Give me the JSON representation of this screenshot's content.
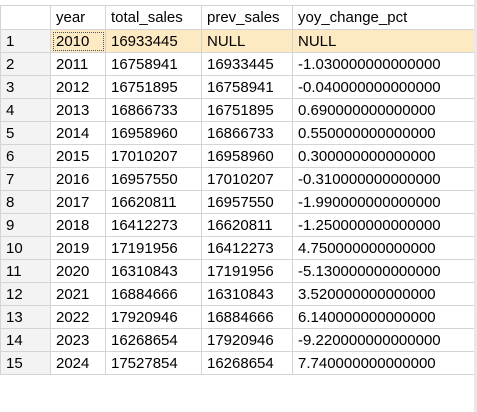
{
  "columns": [
    "year",
    "total_sales",
    "prev_sales",
    "yoy_change_pct"
  ],
  "rows": [
    [
      "1",
      "2010",
      "16933445",
      "NULL",
      "NULL"
    ],
    [
      "2",
      "2011",
      "16758941",
      "16933445",
      "-1.030000000000000"
    ],
    [
      "3",
      "2012",
      "16751895",
      "16758941",
      "-0.040000000000000"
    ],
    [
      "4",
      "2013",
      "16866733",
      "16751895",
      "0.690000000000000"
    ],
    [
      "5",
      "2014",
      "16958960",
      "16866733",
      "0.550000000000000"
    ],
    [
      "6",
      "2015",
      "17010207",
      "16958960",
      "0.300000000000000"
    ],
    [
      "7",
      "2016",
      "16957550",
      "17010207",
      "-0.310000000000000"
    ],
    [
      "8",
      "2017",
      "16620811",
      "16957550",
      "-1.990000000000000"
    ],
    [
      "9",
      "2018",
      "16412273",
      "16620811",
      "-1.250000000000000"
    ],
    [
      "10",
      "2019",
      "17191956",
      "16412273",
      "4.750000000000000"
    ],
    [
      "11",
      "2020",
      "16310843",
      "17191956",
      "-5.130000000000000"
    ],
    [
      "12",
      "2021",
      "16884666",
      "16310843",
      "3.520000000000000"
    ],
    [
      "13",
      "2022",
      "17920946",
      "16884666",
      "6.140000000000000"
    ],
    [
      "14",
      "2023",
      "16268654",
      "17920946",
      "-9.220000000000000"
    ],
    [
      "15",
      "2024",
      "17527854",
      "16268654",
      "7.740000000000000"
    ]
  ],
  "colors": {
    "selected_row": "#fde9c2",
    "row_header": "#f3f3f3",
    "grid_line": "#d4d4d4"
  }
}
